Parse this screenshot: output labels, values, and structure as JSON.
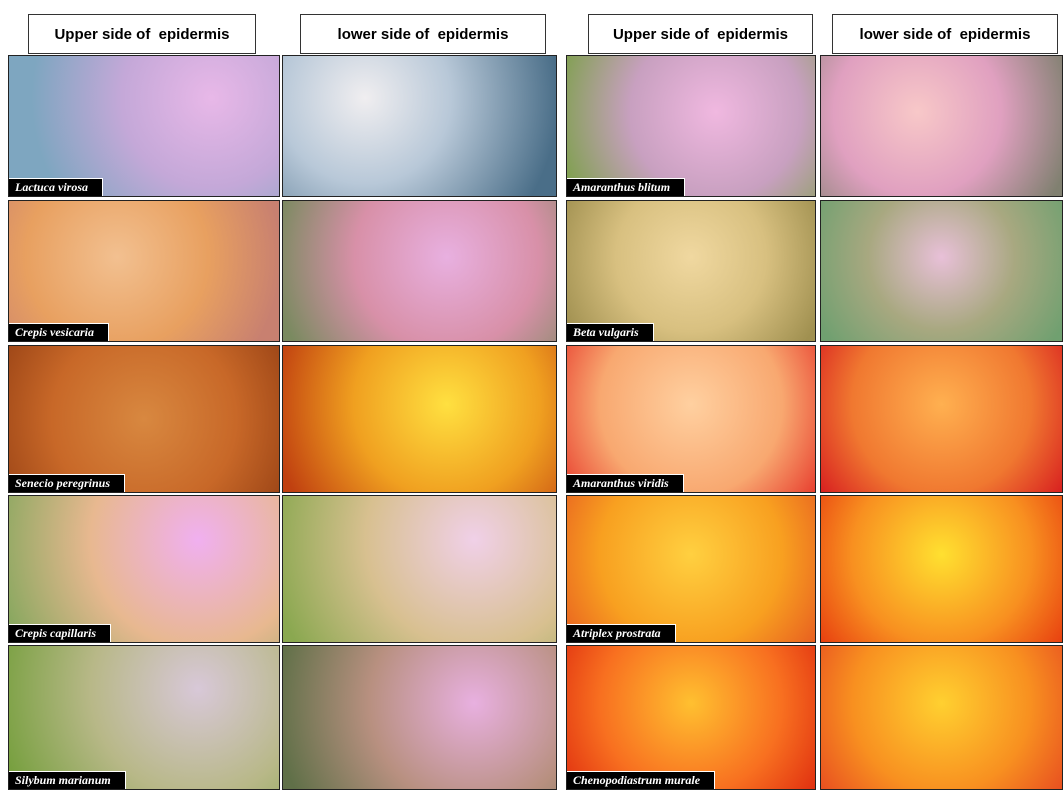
{
  "left_group": {
    "headers": [
      "Upper side of  epidermis",
      "lower side of  epidermis"
    ],
    "species": [
      "Lactuca virosa",
      "Crepis vesicaria",
      "Senecio peregrinus",
      "Crepis capillaris",
      "Silybum marianum"
    ]
  },
  "right_group": {
    "headers": [
      "Upper side of  epidermis",
      "lower side of  epidermis"
    ],
    "species": [
      "Amaranthus blitum",
      "Beta vulgaris",
      "Amaranthus viridis",
      "Atriplex prostrata",
      "Chenopodiastrum murale"
    ]
  }
}
